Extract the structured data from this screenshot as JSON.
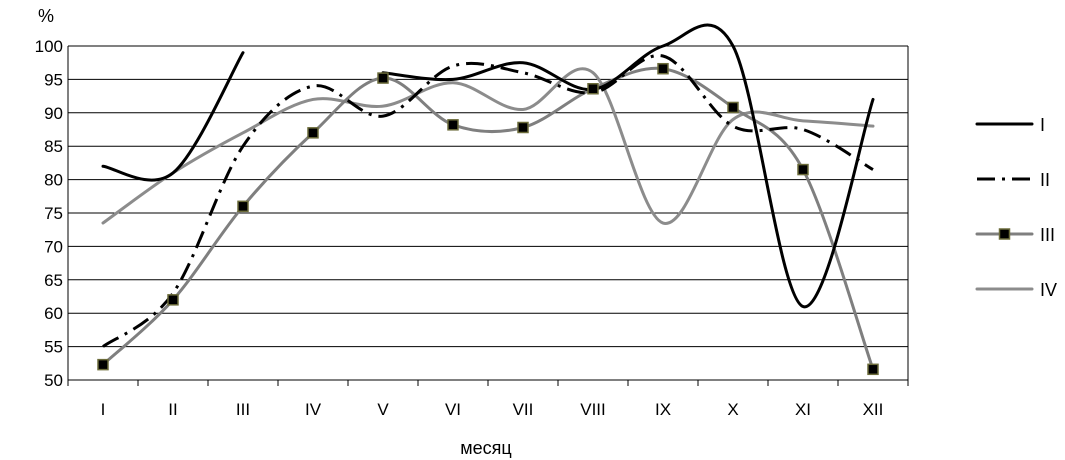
{
  "chart_data": {
    "type": "line",
    "ylabel": "%",
    "xlabel": "месяц",
    "ylim": [
      50,
      100
    ],
    "yticks": [
      50,
      55,
      60,
      65,
      70,
      75,
      80,
      85,
      90,
      95,
      100
    ],
    "categories": [
      "I",
      "II",
      "III",
      "IV",
      "V",
      "VI",
      "VII",
      "VIII",
      "IX",
      "X",
      "XI",
      "XII"
    ],
    "grid": true,
    "legend_position": "right",
    "series": [
      {
        "name": "I",
        "color": "#000000",
        "style": "solid",
        "values": [
          82,
          81,
          99,
          null,
          96,
          95,
          97.5,
          93.5,
          100,
          100,
          61,
          92
        ]
      },
      {
        "name": "II",
        "color": "#000000",
        "style": "dash-dot",
        "values": [
          55,
          63,
          85,
          94,
          89.5,
          97,
          96,
          93,
          98.5,
          88,
          87.5,
          81.5
        ]
      },
      {
        "name": "III",
        "color": "#7f7f7f",
        "style": "solid-square-markers",
        "values": [
          52.3,
          62,
          76,
          87,
          95.2,
          88.2,
          87.8,
          93.6,
          96.6,
          90.8,
          81.5,
          51.6
        ]
      },
      {
        "name": "IV",
        "color": "#8c8c8c",
        "style": "solid",
        "values": [
          73.5,
          81,
          87,
          92,
          91,
          94.5,
          90.5,
          96,
          73.5,
          89,
          88.8,
          88
        ]
      }
    ]
  }
}
